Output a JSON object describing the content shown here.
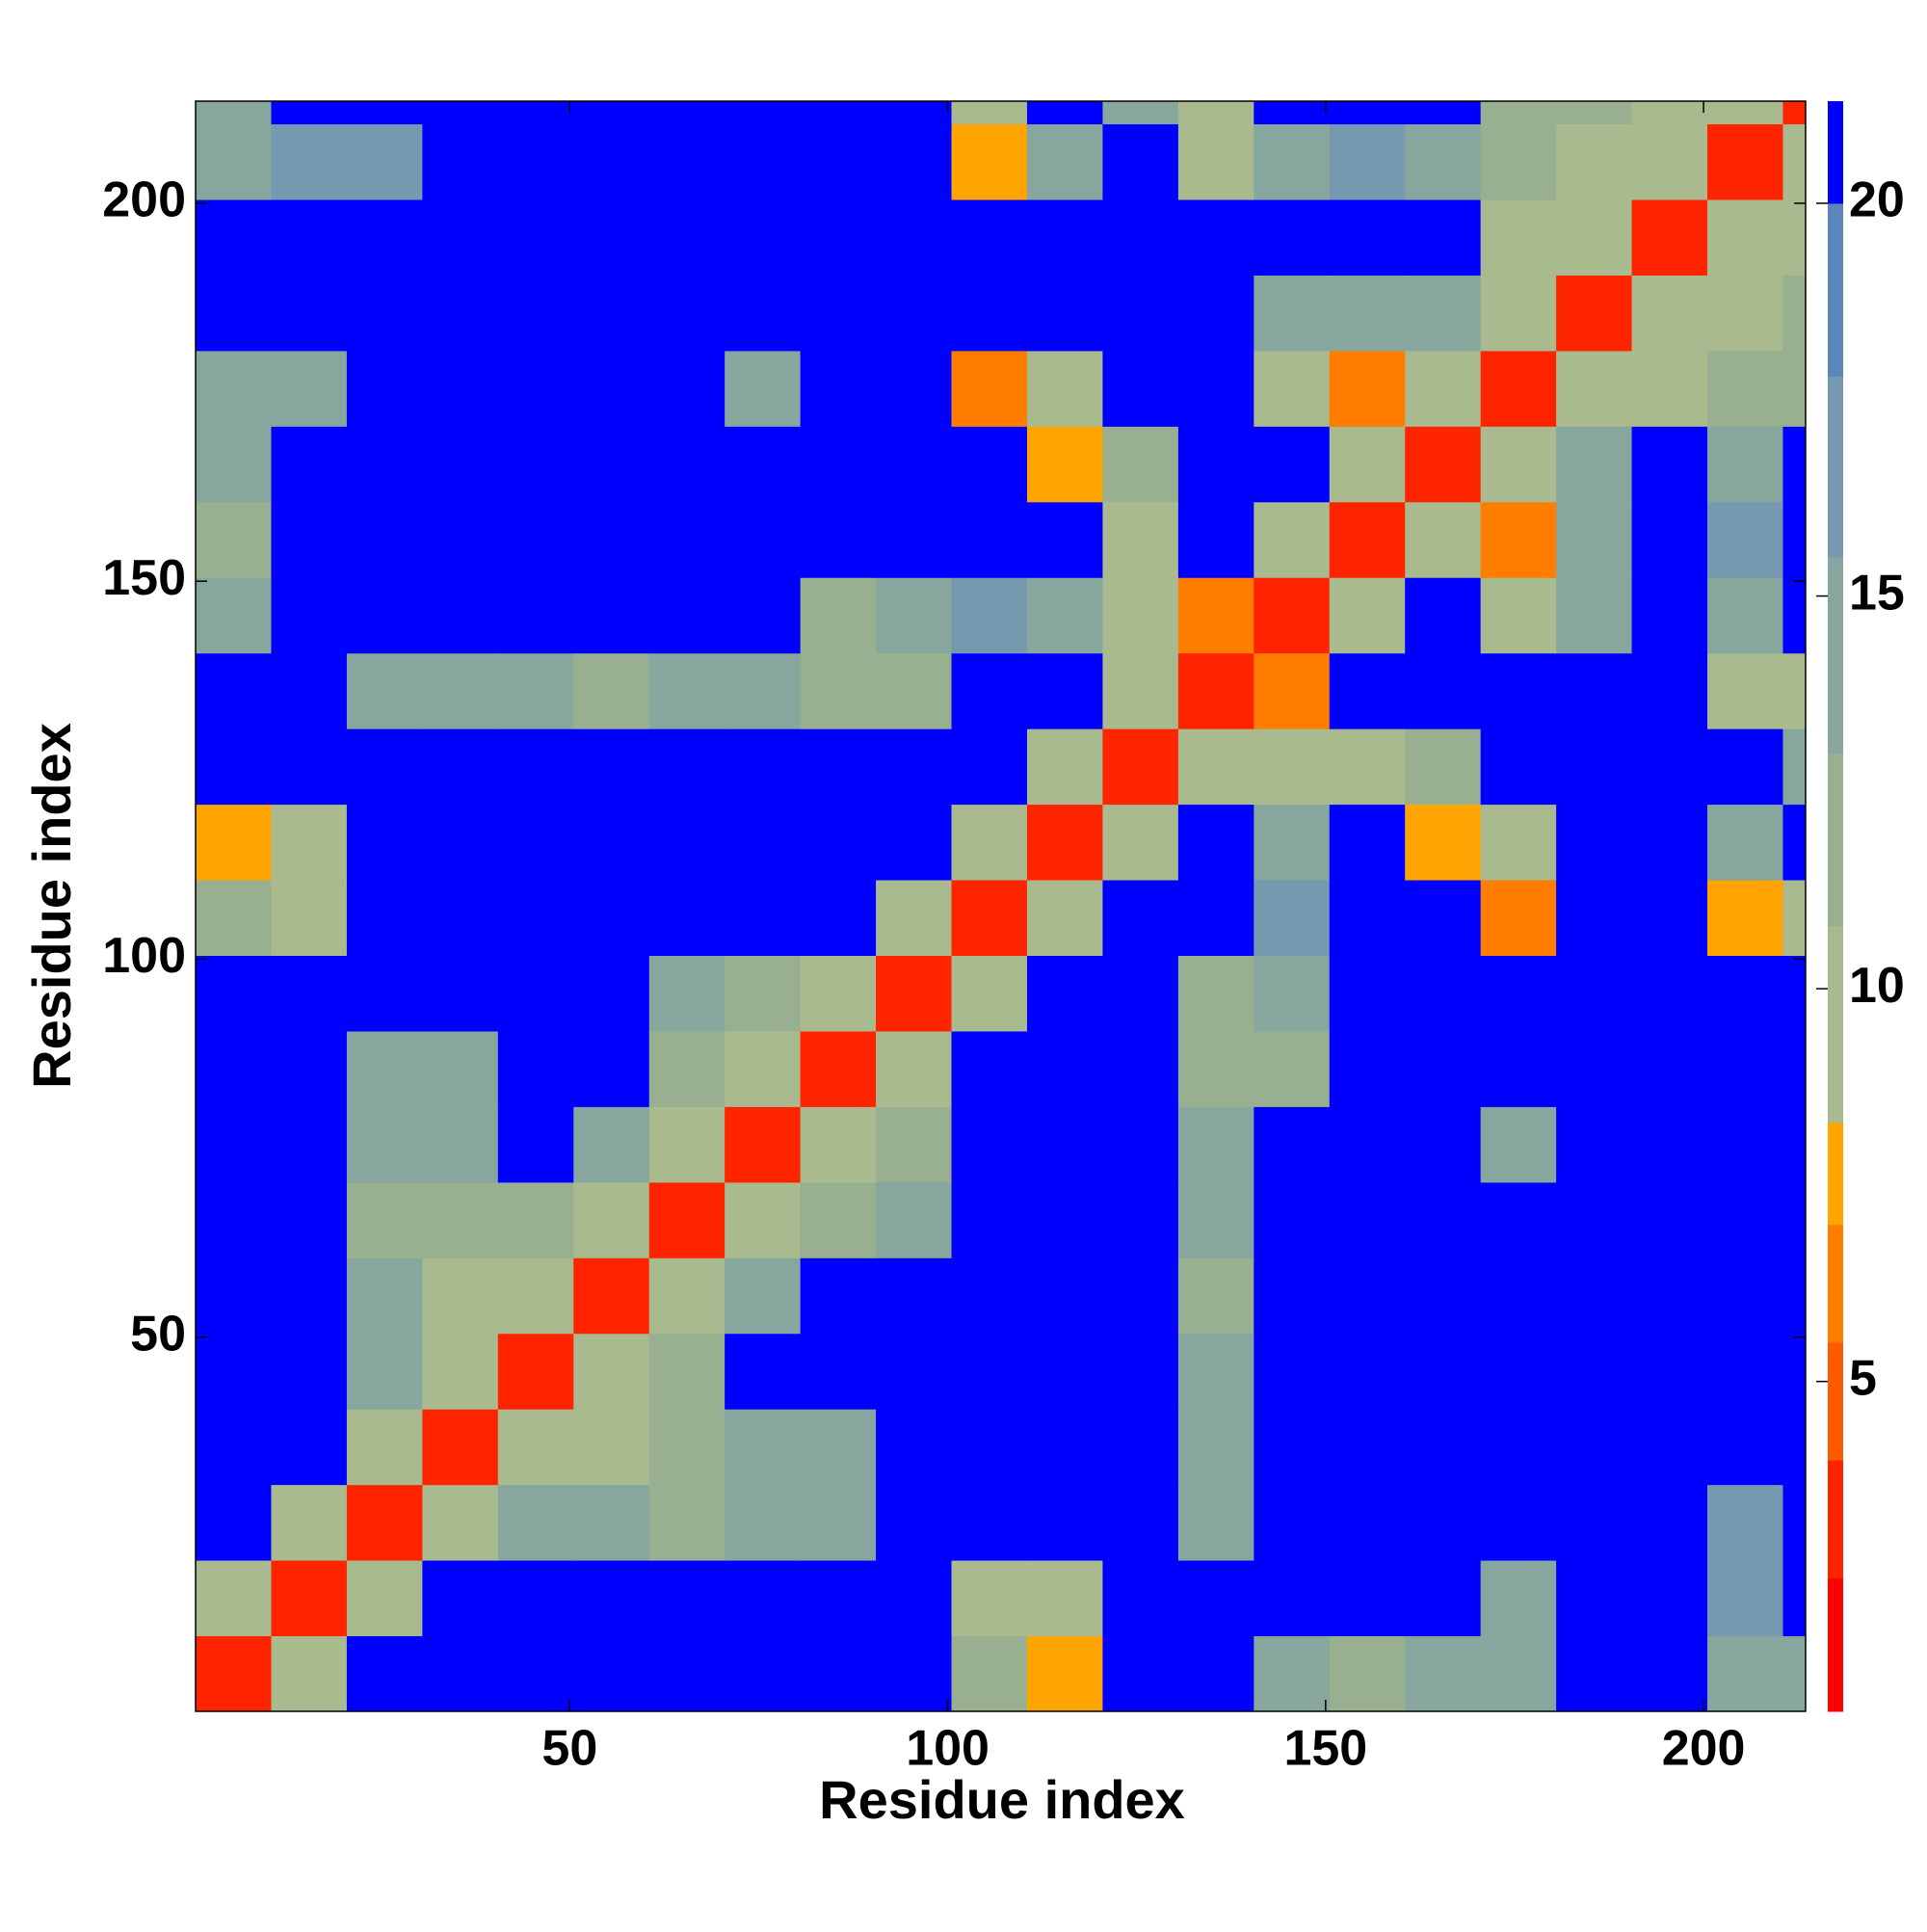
{
  "chart_data": {
    "type": "heatmap",
    "xlabel": "Residue index",
    "ylabel": "Residue index",
    "xbins": [
      0.5,
      10.5,
      20.5,
      30.5,
      40.5,
      50.5,
      60.5,
      70.5,
      80.5,
      90.5,
      100.5,
      110.5,
      120.5,
      130.5,
      140.5,
      150.5,
      160.5,
      170.5,
      180.5,
      190.5,
      200.5,
      210.5,
      213.5
    ],
    "ybins": [
      0.5,
      10.5,
      20.5,
      30.5,
      40.5,
      50.5,
      60.5,
      70.5,
      80.5,
      90.5,
      100.5,
      110.5,
      120.5,
      130.5,
      140.5,
      150.5,
      160.5,
      170.5,
      180.5,
      190.5,
      200.5,
      210.5,
      213.5
    ],
    "xlim": [
      0.5,
      213.5
    ],
    "ylim": [
      0.5,
      213.5
    ],
    "xticks": [
      50,
      100,
      150,
      200
    ],
    "yticks": [
      50,
      100,
      150,
      200
    ],
    "clim": [
      0.8,
      21.3
    ],
    "cticks": [
      5,
      10,
      15,
      20
    ],
    "colorscale": {
      "levels": [
        0.8,
        2.5,
        4,
        5.5,
        7,
        8.3,
        10.8,
        13,
        15.5,
        17.8,
        20,
        21.3
      ],
      "colors": [
        "#ff0000",
        "#ff2400",
        "#ff5a00",
        "#ff7d00",
        "#ffa400",
        "#a9ba8e",
        "#98b090",
        "#86a69e",
        "#7699b0",
        "#5a86ba",
        "#0000ff"
      ]
    },
    "z": [
      [
        3,
        9,
        21,
        21,
        21,
        21,
        21,
        21,
        21,
        21,
        12,
        8,
        21,
        21,
        14,
        13,
        14,
        14,
        21,
        21,
        15,
        15
      ],
      [
        9,
        3,
        9,
        21,
        21,
        21,
        21,
        21,
        21,
        21,
        9,
        9,
        21,
        21,
        21,
        21,
        21,
        15,
        21,
        21,
        17,
        21
      ],
      [
        21,
        9,
        3,
        9,
        14,
        14,
        13,
        15,
        14,
        21,
        21,
        21,
        21,
        15,
        21,
        21,
        21,
        21,
        21,
        21,
        16,
        21
      ],
      [
        21,
        21,
        9,
        3,
        9,
        10,
        12,
        14,
        14,
        21,
        21,
        21,
        21,
        15,
        21,
        21,
        21,
        21,
        21,
        21,
        21,
        21
      ],
      [
        21,
        21,
        14,
        9,
        3,
        9,
        11,
        21,
        21,
        21,
        21,
        21,
        21,
        15,
        21,
        21,
        21,
        21,
        21,
        21,
        21,
        21
      ],
      [
        21,
        21,
        14,
        10,
        9,
        3,
        9,
        14,
        21,
        21,
        21,
        21,
        21,
        13,
        21,
        21,
        21,
        21,
        21,
        21,
        21,
        21
      ],
      [
        21,
        21,
        13,
        12,
        11,
        9,
        3,
        9,
        13,
        14,
        21,
        21,
        21,
        14,
        21,
        21,
        21,
        21,
        21,
        21,
        21,
        21
      ],
      [
        21,
        21,
        15,
        14,
        21,
        14,
        9,
        3,
        9,
        12,
        21,
        21,
        21,
        15,
        21,
        21,
        21,
        15,
        21,
        21,
        21,
        21
      ],
      [
        21,
        21,
        14,
        14,
        21,
        21,
        13,
        9,
        3,
        9,
        21,
        21,
        21,
        13,
        12,
        21,
        21,
        21,
        21,
        21,
        21,
        21
      ],
      [
        21,
        21,
        21,
        21,
        21,
        21,
        14,
        12,
        9,
        3,
        9,
        21,
        21,
        13,
        14,
        21,
        21,
        21,
        21,
        21,
        21,
        21
      ],
      [
        12,
        9,
        21,
        21,
        21,
        21,
        21,
        21,
        21,
        9,
        3,
        9,
        21,
        21,
        16,
        21,
        21,
        7,
        21,
        21,
        8,
        9
      ],
      [
        8,
        9,
        21,
        21,
        21,
        21,
        21,
        21,
        21,
        21,
        9,
        3,
        9,
        21,
        14,
        21,
        8,
        10,
        21,
        21,
        15,
        21
      ],
      [
        21,
        21,
        21,
        21,
        21,
        21,
        21,
        21,
        21,
        21,
        21,
        9,
        3,
        9,
        9,
        9,
        11,
        21,
        21,
        21,
        21,
        14
      ],
      [
        21,
        21,
        15,
        15,
        15,
        13,
        14,
        15,
        13,
        13,
        21,
        21,
        9,
        3,
        6,
        21,
        21,
        21,
        21,
        21,
        10,
        9
      ],
      [
        14,
        21,
        21,
        21,
        21,
        21,
        21,
        21,
        12,
        14,
        16,
        14,
        9,
        6,
        3,
        9,
        21,
        10,
        15,
        21,
        15,
        21
      ],
      [
        13,
        21,
        21,
        21,
        21,
        21,
        21,
        21,
        21,
        21,
        21,
        21,
        9,
        21,
        9,
        3,
        9,
        7,
        14,
        21,
        16,
        21
      ],
      [
        14,
        21,
        21,
        21,
        21,
        21,
        21,
        21,
        21,
        21,
        21,
        8,
        11,
        21,
        21,
        9,
        3,
        9,
        14,
        21,
        14,
        21
      ],
      [
        14,
        15,
        21,
        21,
        21,
        21,
        21,
        15,
        21,
        21,
        7,
        10,
        21,
        21,
        10,
        7,
        9,
        3,
        9,
        10,
        11,
        13
      ],
      [
        21,
        21,
        21,
        21,
        21,
        21,
        21,
        21,
        21,
        21,
        21,
        21,
        21,
        21,
        15,
        14,
        14,
        9,
        3,
        9,
        9,
        12
      ],
      [
        21,
        21,
        21,
        21,
        21,
        21,
        21,
        21,
        21,
        21,
        21,
        21,
        21,
        21,
        21,
        21,
        21,
        10,
        9,
        3,
        9,
        9
      ],
      [
        15,
        17,
        16,
        21,
        21,
        21,
        21,
        21,
        21,
        21,
        8,
        15,
        21,
        10,
        15,
        16,
        14,
        11,
        9,
        9,
        3,
        9
      ],
      [
        15,
        21,
        21,
        21,
        21,
        21,
        21,
        21,
        21,
        21,
        9,
        21,
        14,
        9,
        21,
        21,
        21,
        13,
        12,
        9,
        9,
        3
      ]
    ]
  }
}
